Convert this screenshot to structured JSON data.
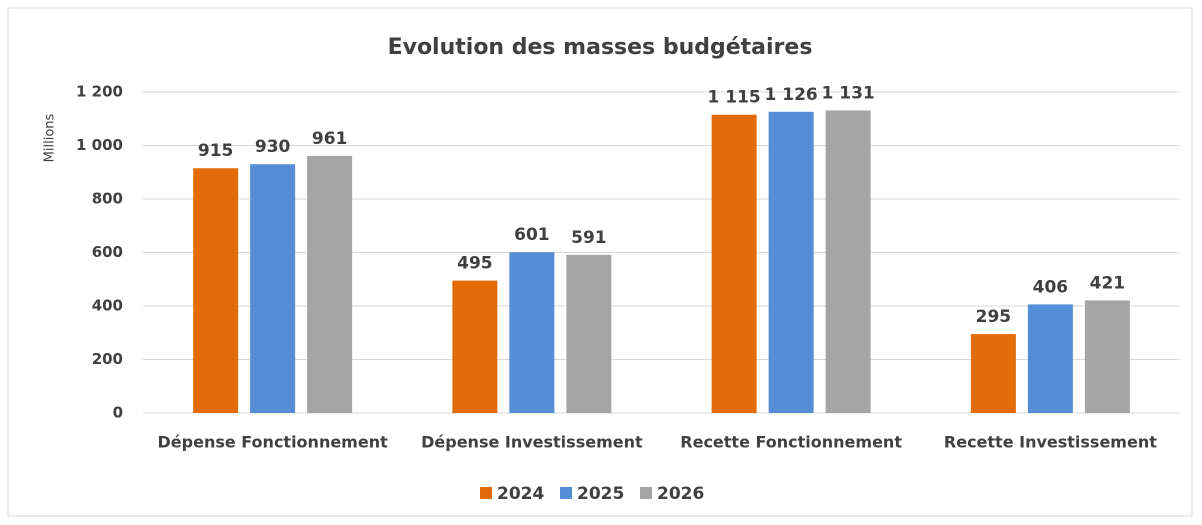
{
  "chart_data": {
    "type": "bar",
    "title": "Evolution des masses budgétaires",
    "y_label": "Millions",
    "categories": [
      "Dépense Fonctionnement",
      "Dépense Investissement",
      "Recette Fonctionnement",
      "Recette Investissement"
    ],
    "series": [
      {
        "name": "2024",
        "color": "#e36c0a",
        "values": [
          915,
          495,
          1115,
          295
        ],
        "value_labels": [
          "915",
          "495",
          "1 115",
          "295"
        ]
      },
      {
        "name": "2025",
        "color": "#558ed5",
        "values": [
          930,
          601,
          1126,
          406
        ],
        "value_labels": [
          "930",
          "601",
          "1 126",
          "406"
        ]
      },
      {
        "name": "2026",
        "color": "#a5a5a5",
        "values": [
          961,
          591,
          1131,
          421
        ],
        "value_labels": [
          "961",
          "591",
          "1 131",
          "421"
        ]
      }
    ],
    "ylim": [
      0,
      1200
    ],
    "yticks": [
      0,
      200,
      400,
      600,
      800,
      {
        "value": 1000,
        "label": "1 000"
      },
      {
        "value": 1200,
        "label": "1 200"
      }
    ],
    "grid": true,
    "legend": "bottom"
  }
}
